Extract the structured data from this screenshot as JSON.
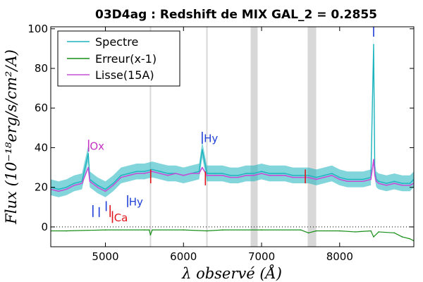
{
  "chart_data": {
    "type": "line",
    "title": "03D4ag : Redshift de MIX GAL_2 = 0.2855",
    "xlabel": "λ observé (Å)",
    "ylabel": "Flux (10⁻¹⁸erg/s/cm²/A)",
    "xlim": [
      4300,
      8950
    ],
    "ylim": [
      -10,
      101
    ],
    "xticks": [
      5000,
      6000,
      7000,
      8000
    ],
    "yticks": [
      0,
      20,
      40,
      60,
      80,
      100
    ],
    "legend_position": "top-left",
    "grid": false,
    "colors": {
      "spectre": "#1ab3be",
      "erreur": "#178f17",
      "lisse": "#c64fd6",
      "band": "#d8d8d8",
      "blue_marker": "#1f3fd6",
      "red_marker": "#e0161c",
      "magenta_marker": "#c434c4"
    },
    "legend": [
      {
        "label": "Spectre",
        "color": "#1ab3be"
      },
      {
        "label": "Erreur(x-1)",
        "color": "#178f17"
      },
      {
        "label": "Lisse(15A)",
        "color": "#c64fd6"
      }
    ],
    "shaded_bands": [
      [
        6860,
        6950
      ],
      [
        7590,
        7700
      ]
    ],
    "sky_lines": [
      5577,
      6300
    ],
    "zero_line": 0,
    "series": [
      {
        "name": "Spectre",
        "x": [
          4300,
          4400,
          4500,
          4600,
          4700,
          4780,
          4800,
          4900,
          5000,
          5100,
          5200,
          5300,
          5400,
          5500,
          5600,
          5700,
          5800,
          5900,
          6000,
          6100,
          6200,
          6240,
          6300,
          6400,
          6500,
          6600,
          6700,
          6800,
          6900,
          7000,
          7100,
          7200,
          7300,
          7400,
          7500,
          7600,
          7700,
          7800,
          7900,
          8000,
          8100,
          8200,
          8300,
          8400,
          8435,
          8450,
          8470,
          8500,
          8600,
          8700,
          8800,
          8900,
          8950
        ],
        "y": [
          20,
          19,
          20,
          22,
          23,
          37,
          24,
          21,
          19,
          22,
          26,
          27,
          28,
          28,
          29,
          28,
          27,
          27,
          26,
          27,
          28,
          39,
          27,
          27,
          27,
          26,
          26,
          27,
          27,
          28,
          27,
          27,
          27,
          26,
          26,
          26,
          25,
          26,
          27,
          25,
          24,
          24,
          24,
          25,
          92,
          28,
          24,
          23,
          22,
          23,
          22,
          22,
          24
        ]
      },
      {
        "name": "Lisse(15A)",
        "x": [
          4300,
          4400,
          4500,
          4600,
          4700,
          4780,
          4800,
          4900,
          5000,
          5100,
          5200,
          5300,
          5400,
          5500,
          5600,
          5700,
          5800,
          5900,
          6000,
          6100,
          6200,
          6240,
          6300,
          6400,
          6500,
          6600,
          6700,
          6800,
          6900,
          7000,
          7100,
          7200,
          7300,
          7400,
          7500,
          7600,
          7700,
          7800,
          7900,
          8000,
          8100,
          8200,
          8300,
          8400,
          8435,
          8450,
          8470,
          8500,
          8600,
          8700,
          8800,
          8900,
          8950
        ],
        "y": [
          19,
          18,
          19,
          21,
          22,
          30,
          23,
          20,
          18,
          21,
          25,
          26,
          27,
          27,
          28,
          27,
          26,
          27,
          26,
          27,
          27,
          30,
          26,
          26,
          26,
          25,
          25,
          26,
          26,
          27,
          26,
          26,
          26,
          25,
          25,
          25,
          24,
          25,
          26,
          24,
          23,
          23,
          23,
          24,
          34,
          26,
          23,
          22,
          21,
          22,
          21,
          21,
          22
        ]
      },
      {
        "name": "Erreur(x-1)",
        "x": [
          4300,
          4500,
          5000,
          5500,
          5560,
          5577,
          5600,
          6000,
          6300,
          6500,
          7000,
          7500,
          7600,
          7700,
          8000,
          8200,
          8400,
          8435,
          8500,
          8700,
          8800,
          8900,
          8950
        ],
        "y": [
          -2,
          -2,
          -1.5,
          -1.5,
          -1.5,
          -4,
          -1.5,
          -1.5,
          -2,
          -1.5,
          -1.5,
          -1.5,
          -3,
          -2,
          -2,
          -2.5,
          -2,
          -5,
          -2.5,
          -3,
          -5,
          -6,
          -7
        ]
      }
    ],
    "annotations": [
      {
        "text": "Ox",
        "x": 4800,
        "y": 41,
        "color": "#c434c4",
        "marker_x": 4785
      },
      {
        "text": "Hy",
        "x": 6260,
        "y": 45,
        "color": "#1f3fd6",
        "marker_x": 6240
      },
      {
        "text": "Hy",
        "x": 5300,
        "y": 13,
        "color": "#1f3fd6",
        "marker_x": 5285
      },
      {
        "text": "Ca",
        "x": 5110,
        "y": 5,
        "color": "#e0161c",
        "marker_x": 5090
      }
    ],
    "extra_markers": [
      {
        "x": 4840,
        "y0": 5,
        "y1": 11,
        "color": "#1f3fd6"
      },
      {
        "x": 4920,
        "y0": 5,
        "y1": 10,
        "color": "#1f3fd6"
      },
      {
        "x": 5010,
        "y0": 8,
        "y1": 13,
        "color": "#1f3fd6"
      },
      {
        "x": 5060,
        "y0": 5,
        "y1": 11,
        "color": "#e0161c"
      },
      {
        "x": 8435,
        "y0": 96,
        "y1": 101,
        "color": "#1f3fd6"
      },
      {
        "x": 5580,
        "y0": 22,
        "y1": 29,
        "color": "#e0161c"
      },
      {
        "x": 6280,
        "y0": 21,
        "y1": 28,
        "color": "#e0161c"
      },
      {
        "x": 7560,
        "y0": 22,
        "y1": 29,
        "color": "#e0161c"
      }
    ]
  }
}
